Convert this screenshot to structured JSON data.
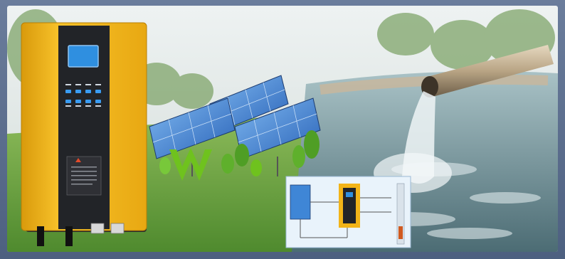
{
  "scene": {
    "description_tags": [
      "solar-pump-inverter",
      "solar-panels",
      "water-pipe",
      "water-pool",
      "system-diagram"
    ]
  },
  "inverter": {
    "panel_labels": [
      "",
      "",
      "",
      ""
    ],
    "warning_label": ""
  },
  "diagram": {
    "labels": [
      "",
      "",
      "",
      ""
    ]
  },
  "colors": {
    "inverter_body": "#f2b418",
    "inverter_front": "#222428",
    "screen": "#2f8fe0",
    "sky": "#dfe7e9",
    "grass": "#5f9a3a",
    "panel": "#3f86d6",
    "water": "#8fb0b8",
    "logo_green": "#6fc21e"
  }
}
